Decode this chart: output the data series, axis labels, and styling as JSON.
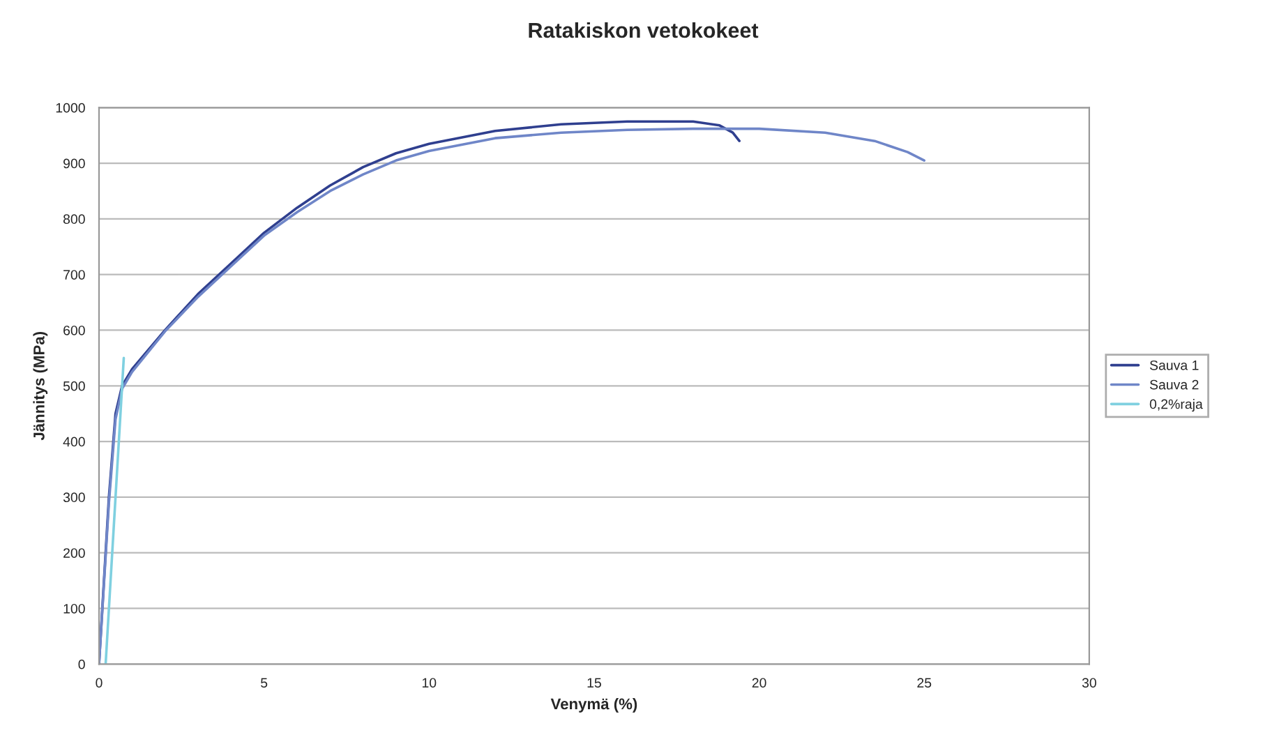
{
  "chart_data": {
    "type": "line",
    "title": "Ratakiskon vetokokeet",
    "xlabel": "Venymä (%)",
    "ylabel": "Jännitys (MPa)",
    "xlim": [
      0,
      30
    ],
    "xticks": [
      0,
      5,
      10,
      15,
      20,
      25,
      30
    ],
    "ylim": [
      0,
      1000
    ],
    "yticks": [
      0,
      100,
      200,
      300,
      400,
      500,
      600,
      700,
      800,
      900,
      1000
    ],
    "grid": "y",
    "legend": "right",
    "marker": "none",
    "line_style": "solid",
    "series": [
      {
        "name": "Sauva 1",
        "color": "#2f3f8f",
        "x": [
          0,
          0.3,
          0.5,
          0.7,
          1,
          2,
          3,
          4,
          5,
          6,
          7,
          8,
          9,
          10,
          12,
          14,
          16,
          18,
          18.8,
          19.2,
          19.4
        ],
        "values": [
          0,
          300,
          450,
          500,
          530,
          600,
          665,
          720,
          775,
          820,
          860,
          893,
          918,
          935,
          958,
          970,
          975,
          975,
          968,
          955,
          940
        ]
      },
      {
        "name": "Sauva 2",
        "color": "#6f86c8",
        "x": [
          0,
          0.3,
          0.5,
          0.7,
          1,
          2,
          3,
          4,
          5,
          6,
          7,
          8,
          9,
          10,
          12,
          14,
          16,
          18,
          20,
          22,
          23.5,
          24.5,
          25
        ],
        "values": [
          0,
          290,
          440,
          495,
          525,
          598,
          660,
          715,
          770,
          812,
          850,
          880,
          905,
          922,
          945,
          955,
          960,
          962,
          962,
          955,
          940,
          920,
          905
        ]
      },
      {
        "name": "0,2%raja",
        "color": "#7fd0e0",
        "x": [
          0.2,
          0.75
        ],
        "values": [
          0,
          550
        ]
      }
    ]
  }
}
